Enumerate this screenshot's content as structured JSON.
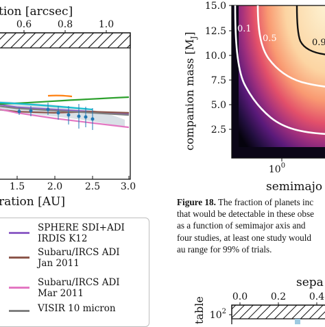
{
  "left_plot": {
    "top_axis_label": "tion [arcsec]",
    "top_ticks": [
      "0.6",
      "0.8",
      "1.0"
    ],
    "bottom_ticks": [
      "1.5",
      "2.0",
      "2.5",
      "3.0"
    ],
    "bottom_axis_label": "ration [AU]"
  },
  "legend": {
    "items": [
      {
        "label_line1": "SPHERE SDI+ADI",
        "label_line2": "IRDIS K12",
        "color": "#8e5fc6"
      },
      {
        "label_line1": "Subaru/IRCS ADI",
        "label_line2": "Jan 2011",
        "color": "#8c564b"
      },
      {
        "label_line1": "Subaru/IRCS ADI",
        "label_line2": "Mar 2011",
        "color": "#e377c2"
      },
      {
        "label_line1": "VISIR 10 micron",
        "label_line2": "",
        "color": "#7f7f7f"
      }
    ]
  },
  "heatmap": {
    "y_ticks": [
      "15.0",
      "12.5",
      "10.0",
      "7.5",
      "5.0",
      "2.5"
    ],
    "y_axis_label": "companion mass [M",
    "y_axis_unit_sub": "J",
    "y_axis_label_end": "]",
    "x_tick": "10",
    "x_tick_exp": "0",
    "x_axis_label": "semimajo",
    "contour_labels": [
      "0.1",
      "0.5",
      "0.90"
    ]
  },
  "caption": {
    "label": "Figure 18.",
    "lines": [
      " The fraction of planets inc",
      "that would be detectable in these obse",
      "as a function of semimajor axis and",
      "four studies, at least one study would",
      "au range for 99% of trials."
    ]
  },
  "bottom_plot": {
    "top_label": "sepa",
    "top_ticks": [
      "0.0",
      "0.2",
      "0.4"
    ],
    "y_tick": "10",
    "y_tick_exp": "2",
    "y_axis_label": "table"
  },
  "chart_data": {
    "type": "line",
    "title": "",
    "xlabel": "ration [AU]",
    "x_top_label": "tion [arcsec]",
    "xlim": [
      1.0,
      3.0
    ],
    "series": [
      {
        "name": "SPHERE SDI+ADI IRDIS K12",
        "x": [
          1.0,
          1.5,
          2.0,
          2.5,
          3.0
        ],
        "y": [
          0.45,
          0.4,
          0.38,
          0.36,
          0.34
        ]
      },
      {
        "name": "Subaru/IRCS ADI Jan 2011",
        "x": [
          1.0,
          1.5,
          2.0,
          2.5,
          3.0
        ],
        "y": [
          0.4,
          0.36,
          0.35,
          0.36,
          0.35
        ]
      },
      {
        "name": "Subaru/IRCS ADI Mar 2011",
        "x": [
          1.0,
          1.5,
          2.0,
          2.5,
          3.0
        ],
        "y": [
          0.42,
          0.35,
          0.3,
          0.26,
          0.22
        ]
      },
      {
        "name": "VISIR 10 micron",
        "x": [
          1.0,
          1.5,
          2.0,
          2.5,
          3.0
        ],
        "y": [
          0.43,
          0.39,
          0.37,
          0.35,
          0.33
        ]
      }
    ]
  }
}
